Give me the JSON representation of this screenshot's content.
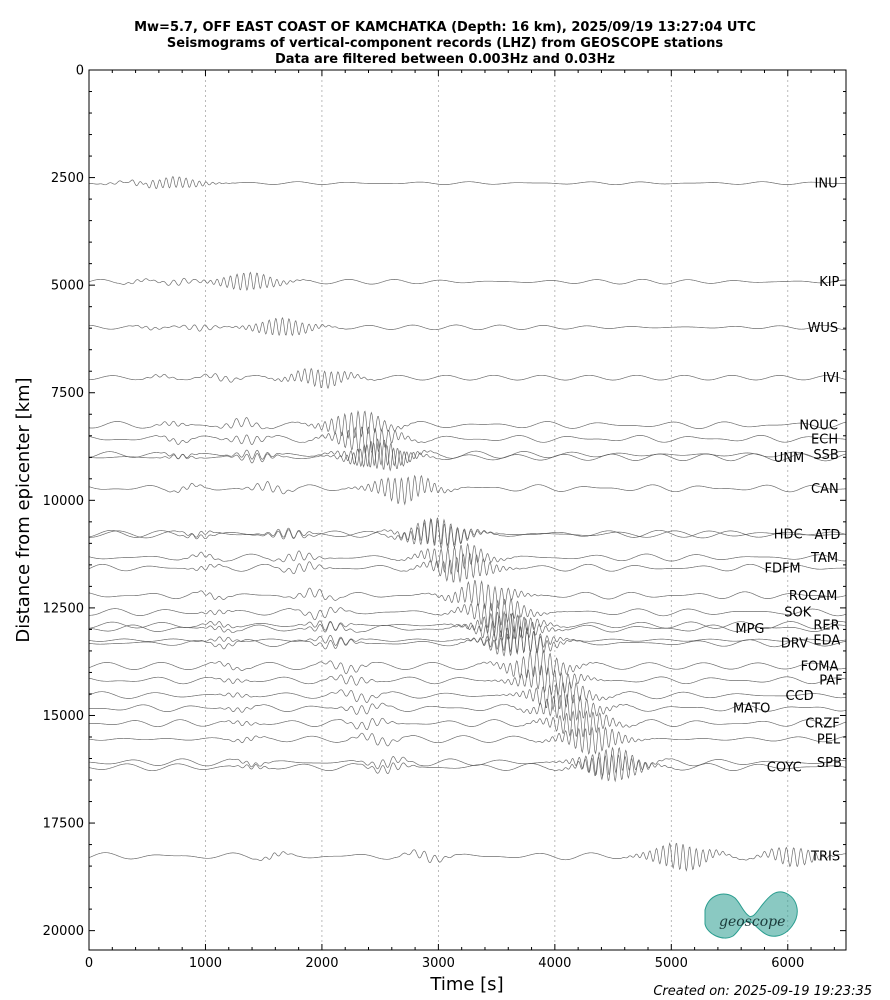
{
  "chart_data": {
    "type": "line",
    "title": [
      "Mw=5.7, OFF EAST COAST OF KAMCHATKA (Depth: 16 km), 2025/09/19 13:27:04 UTC",
      "Seismograms of vertical-component records (LHZ) from GEOSCOPE stations",
      "Data are filtered between 0.003Hz and 0.03Hz"
    ],
    "xlabel": "Time [s]",
    "ylabel": "Distance from epicenter [km]",
    "xlim": [
      0,
      6500
    ],
    "ylim": [
      20450,
      0
    ],
    "xticks": [
      "0",
      "1000",
      "2000",
      "3000",
      "4000",
      "5000",
      "6000"
    ],
    "yticks": [
      "0",
      "2500",
      "5000",
      "7500",
      "10000",
      "12500",
      "15000",
      "17500",
      "20000"
    ],
    "xtick_values": [
      0,
      1000,
      2000,
      3000,
      4000,
      5000,
      6000
    ],
    "ytick_values": [
      0,
      2500,
      5000,
      7500,
      10000,
      12500,
      15000,
      17500,
      20000
    ],
    "grid": "vertical dotted at x ticks",
    "series_color": "#555555",
    "stations": [
      {
        "name": "INU",
        "distance": 2630,
        "label_x": 6230,
        "label_y": 2630
      },
      {
        "name": "KIP",
        "distance": 4920,
        "label_x": 6270,
        "label_y": 4920
      },
      {
        "name": "WUS",
        "distance": 5980,
        "label_x": 6170,
        "label_y": 5980
      },
      {
        "name": "IVI",
        "distance": 7150,
        "label_x": 6300,
        "label_y": 7150
      },
      {
        "name": "NOUC",
        "distance": 8250,
        "label_x": 6100,
        "label_y": 8250
      },
      {
        "name": "ECH",
        "distance": 8570,
        "label_x": 6200,
        "label_y": 8570
      },
      {
        "name": "SSB",
        "distance": 8940,
        "label_x": 6220,
        "label_y": 8940
      },
      {
        "name": "UNM",
        "distance": 9000,
        "label_x": 5880,
        "label_y": 9000
      },
      {
        "name": "CAN",
        "distance": 9720,
        "label_x": 6200,
        "label_y": 9720
      },
      {
        "name": "HDC",
        "distance": 10780,
        "label_x": 5880,
        "label_y": 10780
      },
      {
        "name": "ATD",
        "distance": 10790,
        "label_x": 6230,
        "label_y": 10790
      },
      {
        "name": "TAM",
        "distance": 11330,
        "label_x": 6200,
        "label_y": 11330
      },
      {
        "name": "FDFM",
        "distance": 11570,
        "label_x": 5800,
        "label_y": 11570
      },
      {
        "name": "ROCAM",
        "distance": 12210,
        "label_x": 6010,
        "label_y": 12210
      },
      {
        "name": "SOK",
        "distance": 12600,
        "label_x": 5970,
        "label_y": 12600
      },
      {
        "name": "RER",
        "distance": 12900,
        "label_x": 6220,
        "label_y": 12900
      },
      {
        "name": "MPG",
        "distance": 12980,
        "label_x": 5550,
        "label_y": 12980
      },
      {
        "name": "EDA",
        "distance": 13250,
        "label_x": 6220,
        "label_y": 13250
      },
      {
        "name": "DRV",
        "distance": 13320,
        "label_x": 5940,
        "label_y": 13320
      },
      {
        "name": "FOMA",
        "distance": 13850,
        "label_x": 6110,
        "label_y": 13850
      },
      {
        "name": "PAF",
        "distance": 14180,
        "label_x": 6270,
        "label_y": 14180
      },
      {
        "name": "CCD",
        "distance": 14530,
        "label_x": 5980,
        "label_y": 14530
      },
      {
        "name": "MATO",
        "distance": 14830,
        "label_x": 5530,
        "label_y": 14830
      },
      {
        "name": "CRZF",
        "distance": 15180,
        "label_x": 6150,
        "label_y": 15180
      },
      {
        "name": "PEL",
        "distance": 15550,
        "label_x": 6250,
        "label_y": 15550
      },
      {
        "name": "SPB",
        "distance": 16090,
        "label_x": 6250,
        "label_y": 16090
      },
      {
        "name": "COYC",
        "distance": 16200,
        "label_x": 5820,
        "label_y": 16200
      },
      {
        "name": "TRIS",
        "distance": 18270,
        "label_x": 6200,
        "label_y": 18270
      }
    ]
  },
  "footer": {
    "created": "Created on: 2025-09-19 19:23:35"
  },
  "logo": {
    "text": "geoscope",
    "color": "#2a9d8f"
  }
}
